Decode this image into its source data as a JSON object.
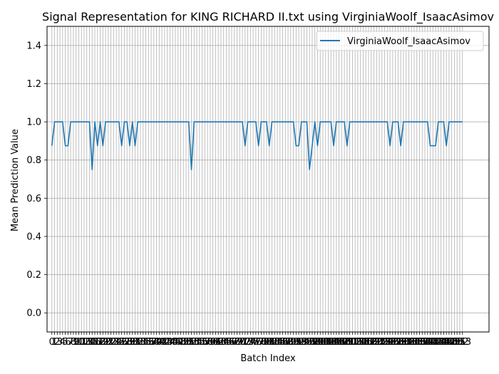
{
  "chart_data": {
    "type": "line",
    "title": "Signal Representation for KING RICHARD II.txt using VirginiaWoolf_IsaacAsimov",
    "xlabel": "Batch Index",
    "ylabel": "Mean Prediction Value",
    "xlim": [
      -1.8,
      162.9
    ],
    "ylim": [
      -0.1,
      1.5
    ],
    "y_ticks": [
      0.0,
      0.2,
      0.4,
      0.6,
      0.8,
      1.0,
      1.2,
      1.4
    ],
    "y_tick_labels": [
      "0.0",
      "0.2",
      "0.4",
      "0.6",
      "0.8",
      "1.0",
      "1.2",
      "1.4"
    ],
    "x_ticks_every_integer_from": 0,
    "x_ticks_every_integer_to": 153,
    "grid": true,
    "legend_position": "upper right",
    "color": "#1f77b4",
    "series": [
      {
        "name": "VirginiaWoolf_IsaacAsimov",
        "x": [
          0,
          1,
          2,
          3,
          4,
          5,
          6,
          7,
          8,
          9,
          10,
          11,
          12,
          13,
          14,
          15,
          16,
          17,
          18,
          19,
          20,
          21,
          22,
          23,
          24,
          25,
          26,
          27,
          28,
          29,
          30,
          31,
          32,
          33,
          34,
          35,
          36,
          37,
          38,
          39,
          40,
          41,
          42,
          43,
          44,
          45,
          46,
          47,
          48,
          49,
          50,
          51,
          52,
          53,
          54,
          55,
          56,
          57,
          58,
          59,
          60,
          61,
          62,
          63,
          64,
          65,
          66,
          67,
          68,
          69,
          70,
          71,
          72,
          73,
          74,
          75,
          76,
          77,
          78,
          79,
          80,
          81,
          82,
          83,
          84,
          85,
          86,
          87,
          88,
          89,
          90,
          91,
          92,
          93,
          94,
          95,
          96,
          97,
          98,
          99,
          100,
          101,
          102,
          103,
          104,
          105,
          106,
          107,
          108,
          109,
          110,
          111,
          112,
          113,
          114,
          115,
          116,
          117,
          118,
          119,
          120,
          121,
          122,
          123,
          124,
          125,
          126,
          127,
          128,
          129,
          130,
          131,
          132,
          133,
          134,
          135,
          136,
          137,
          138,
          139,
          140,
          141,
          142,
          143,
          144,
          145,
          146,
          147,
          148,
          149,
          150,
          151,
          152,
          153
        ],
        "values": [
          0.875,
          1.0,
          1.0,
          1.0,
          1.0,
          0.875,
          0.875,
          1.0,
          1.0,
          1.0,
          1.0,
          1.0,
          1.0,
          1.0,
          1.0,
          0.75,
          1.0,
          0.875,
          1.0,
          0.875,
          1.0,
          1.0,
          1.0,
          1.0,
          1.0,
          1.0,
          0.875,
          1.0,
          1.0,
          0.875,
          1.0,
          0.875,
          1.0,
          1.0,
          1.0,
          1.0,
          1.0,
          1.0,
          1.0,
          1.0,
          1.0,
          1.0,
          1.0,
          1.0,
          1.0,
          1.0,
          1.0,
          1.0,
          1.0,
          1.0,
          1.0,
          1.0,
          0.75,
          1.0,
          1.0,
          1.0,
          1.0,
          1.0,
          1.0,
          1.0,
          1.0,
          1.0,
          1.0,
          1.0,
          1.0,
          1.0,
          1.0,
          1.0,
          1.0,
          1.0,
          1.0,
          1.0,
          0.875,
          1.0,
          1.0,
          1.0,
          1.0,
          0.875,
          1.0,
          1.0,
          1.0,
          0.875,
          1.0,
          1.0,
          1.0,
          1.0,
          1.0,
          1.0,
          1.0,
          1.0,
          1.0,
          0.875,
          0.875,
          1.0,
          1.0,
          1.0,
          0.75,
          0.875,
          1.0,
          0.875,
          1.0,
          1.0,
          1.0,
          1.0,
          1.0,
          0.875,
          1.0,
          1.0,
          1.0,
          1.0,
          0.875,
          1.0,
          1.0,
          1.0,
          1.0,
          1.0,
          1.0,
          1.0,
          1.0,
          1.0,
          1.0,
          1.0,
          1.0,
          1.0,
          1.0,
          1.0,
          0.875,
          1.0,
          1.0,
          1.0,
          0.875,
          1.0,
          1.0,
          1.0,
          1.0,
          1.0,
          1.0,
          1.0,
          1.0,
          1.0,
          1.0,
          0.875,
          0.875,
          0.875,
          1.0,
          1.0,
          1.0,
          0.875,
          1.0,
          1.0,
          1.0,
          1.0,
          1.0,
          1.0
        ]
      }
    ]
  }
}
